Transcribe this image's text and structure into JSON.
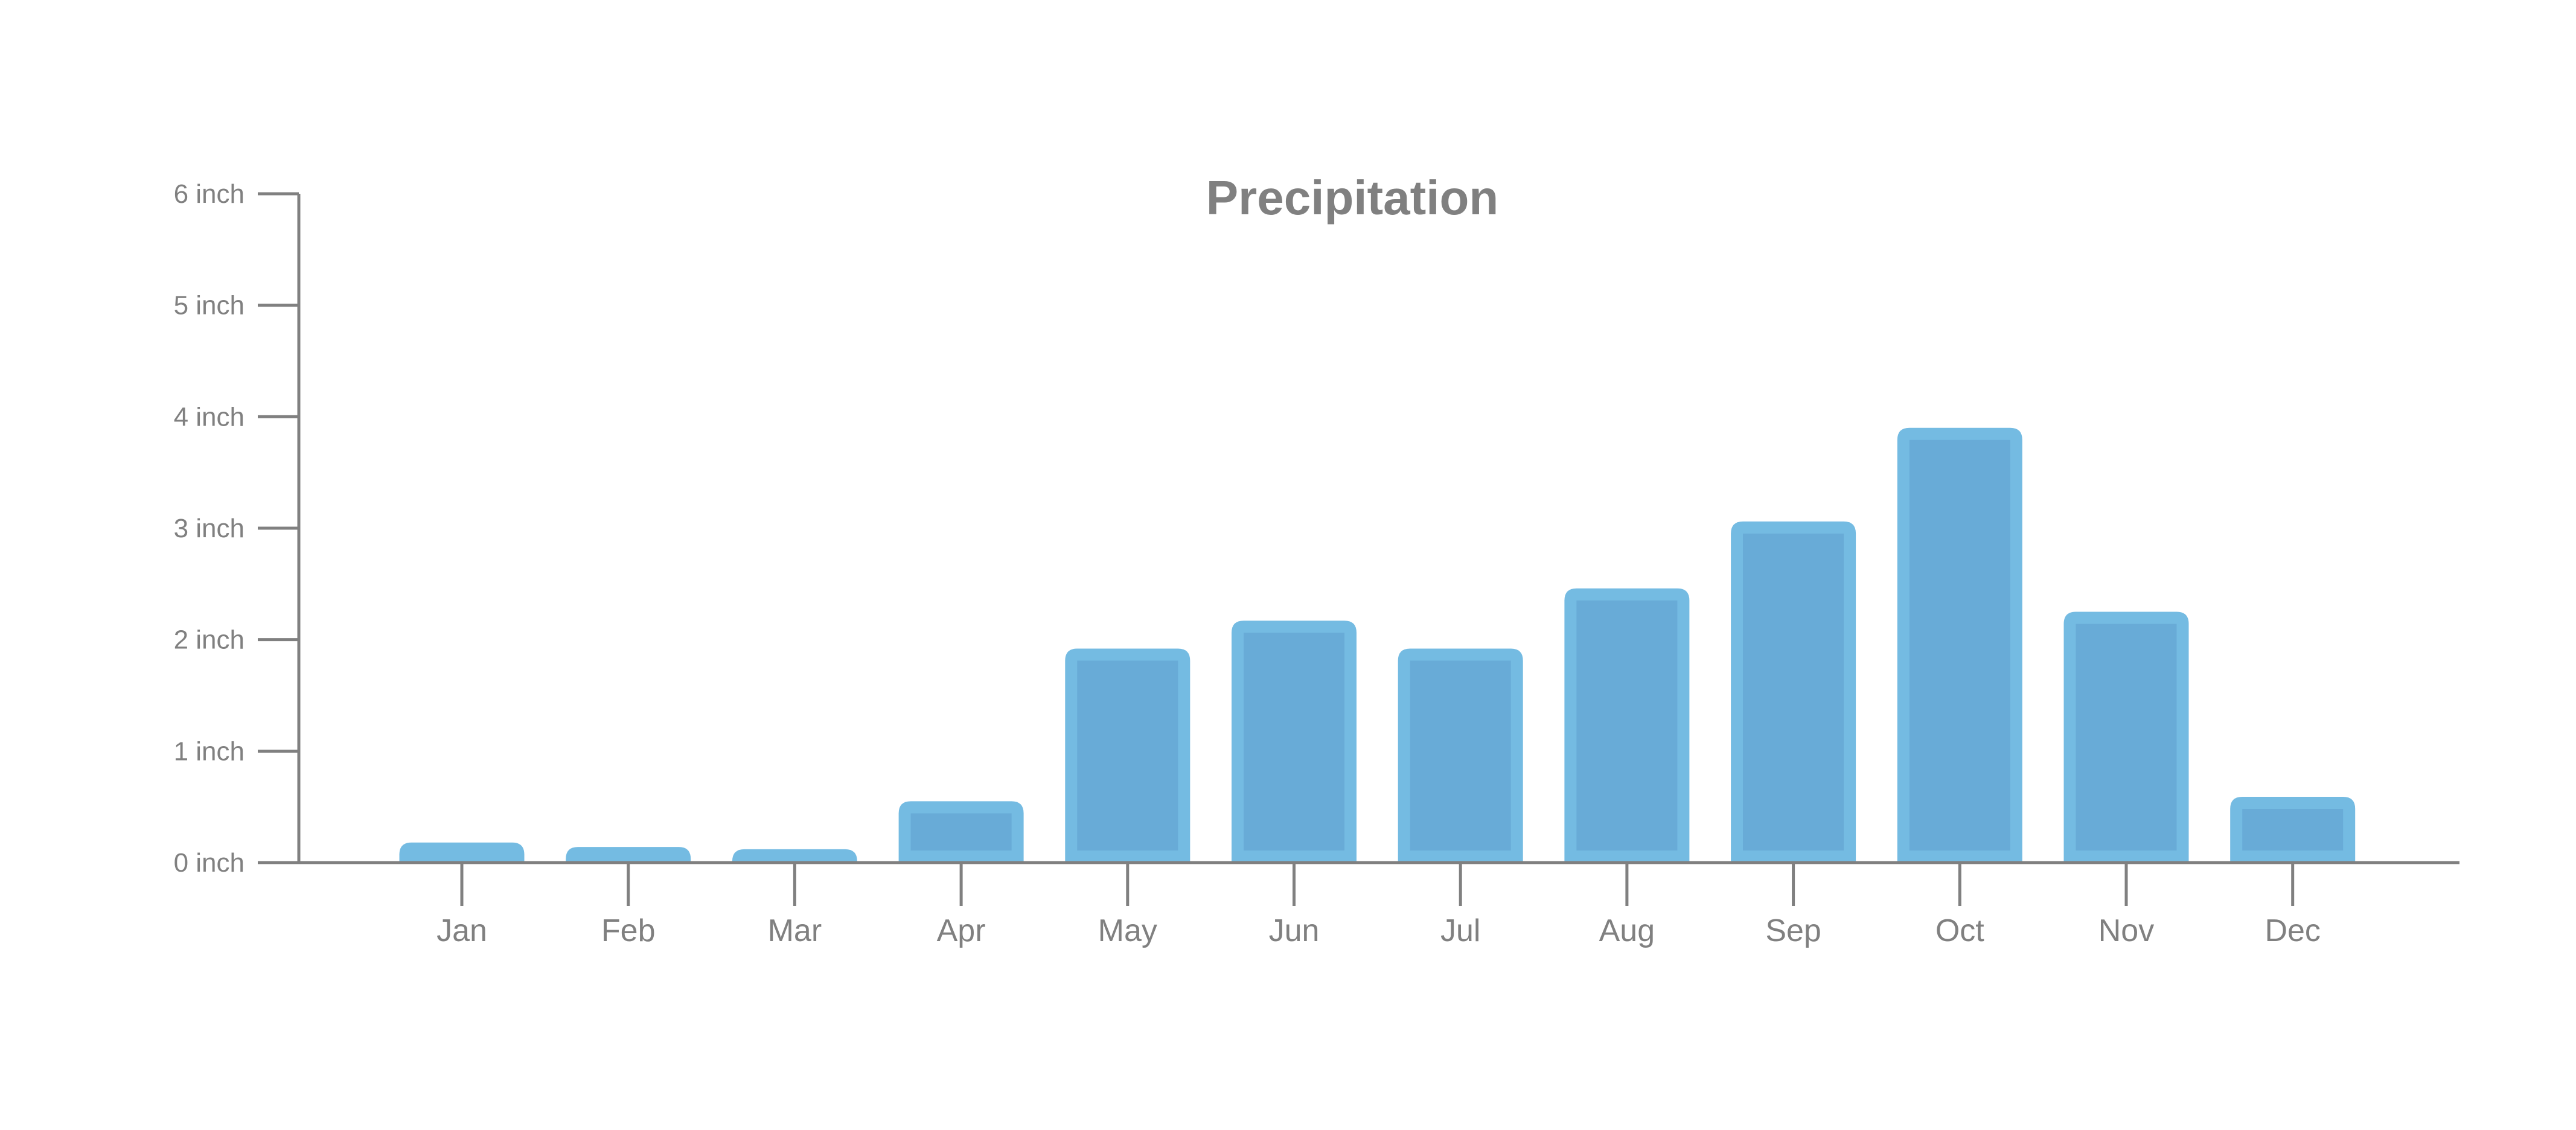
{
  "chart_data": {
    "type": "bar",
    "title": "Precipitation",
    "xlabel": "",
    "ylabel": "",
    "categories": [
      "Jan",
      "Feb",
      "Mar",
      "Apr",
      "May",
      "Jun",
      "Jul",
      "Aug",
      "Sep",
      "Oct",
      "Nov",
      "Dec"
    ],
    "values": [
      0.18,
      0.14,
      0.12,
      0.55,
      1.92,
      2.17,
      1.92,
      2.46,
      3.06,
      3.9,
      2.25,
      0.59
    ],
    "unit": "inch",
    "ylim": [
      0,
      6
    ],
    "yticks": [
      0,
      1,
      2,
      3,
      4,
      5,
      6
    ],
    "ytick_labels": [
      "0 inch",
      "1 inch",
      "2 inch",
      "3 inch",
      "4 inch",
      "5 inch",
      "6 inch"
    ],
    "grid": false,
    "legend": null,
    "colors": {
      "bar_outer": "#74bbe2",
      "bar_inner": "#68abd7",
      "axis": "#808080",
      "text": "#808080"
    }
  }
}
